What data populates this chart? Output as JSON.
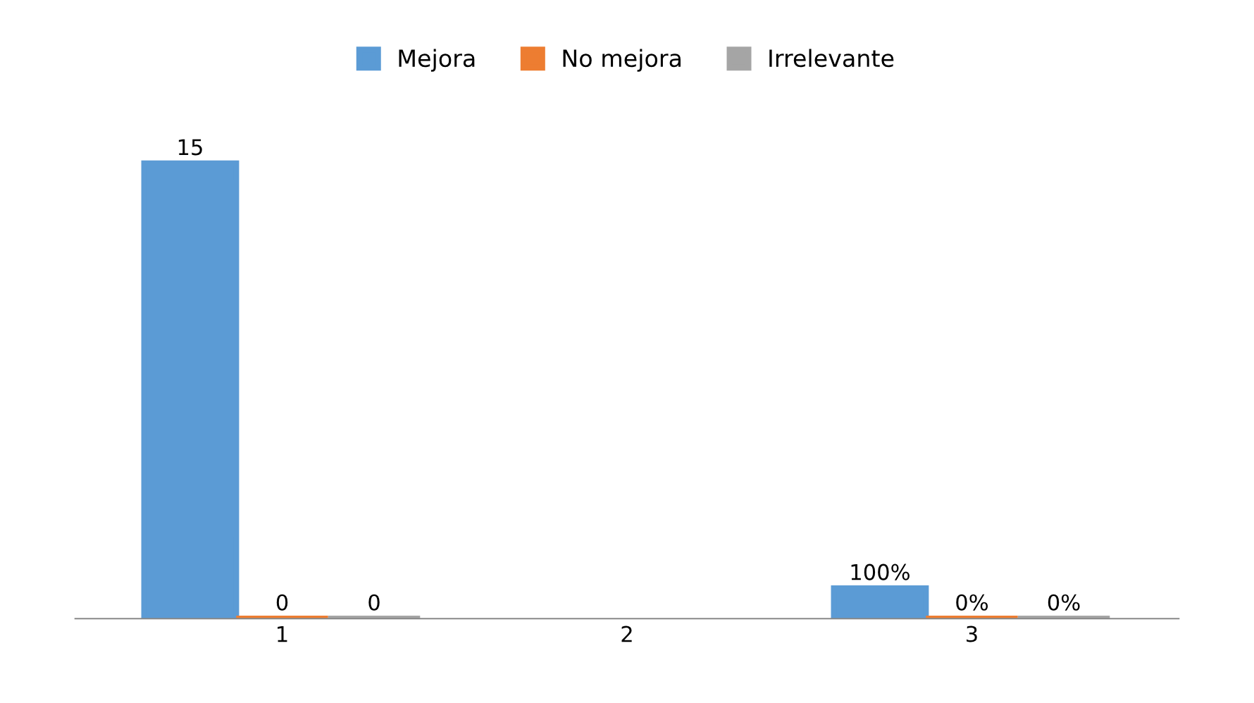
{
  "chart_data": {
    "type": "bar",
    "categories": [
      "1",
      "2",
      "3"
    ],
    "series": [
      {
        "name": "Mejora",
        "color": "#5b9bd5",
        "values": [
          15,
          null,
          1
        ],
        "value_labels": [
          "15",
          null,
          "100%"
        ]
      },
      {
        "name": "No mejora",
        "color": "#ed7d31",
        "values": [
          0,
          null,
          0
        ],
        "value_labels": [
          "0",
          null,
          "0%"
        ]
      },
      {
        "name": "Irrelevante",
        "color": "#a5a5a5",
        "values": [
          0,
          null,
          0
        ],
        "value_labels": [
          "0",
          null,
          "0%"
        ]
      }
    ],
    "legend": "top",
    "grid": false,
    "tick_labels": "x"
  }
}
